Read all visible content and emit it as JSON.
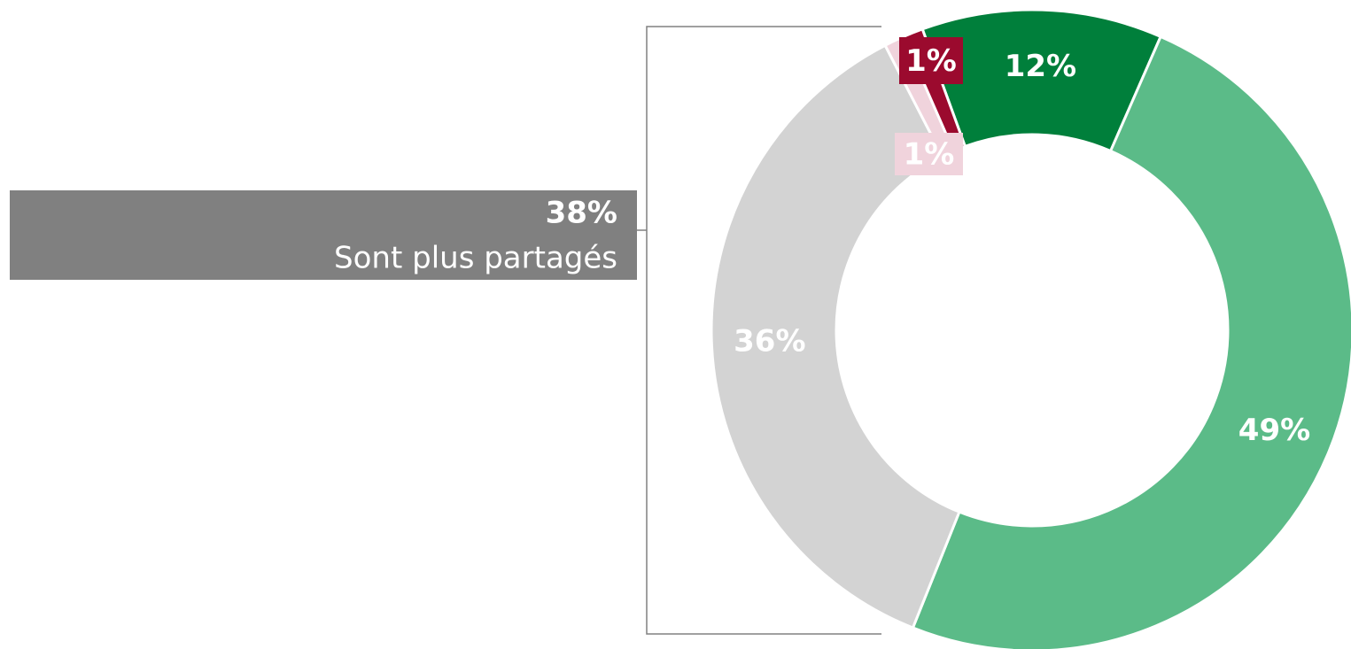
{
  "chart_data": {
    "type": "donut",
    "values": [
      12,
      49,
      36,
      1,
      1
    ],
    "value_labels": [
      "12%",
      "49%",
      "36%",
      "1%",
      "1%"
    ],
    "colors": [
      "#007f3b",
      "#5bbb88",
      "#d3d3d3",
      "#f0d3dc",
      "#9b0a2e"
    ],
    "bracket": {
      "label": "38%",
      "text": "Sont plus partagés"
    }
  }
}
